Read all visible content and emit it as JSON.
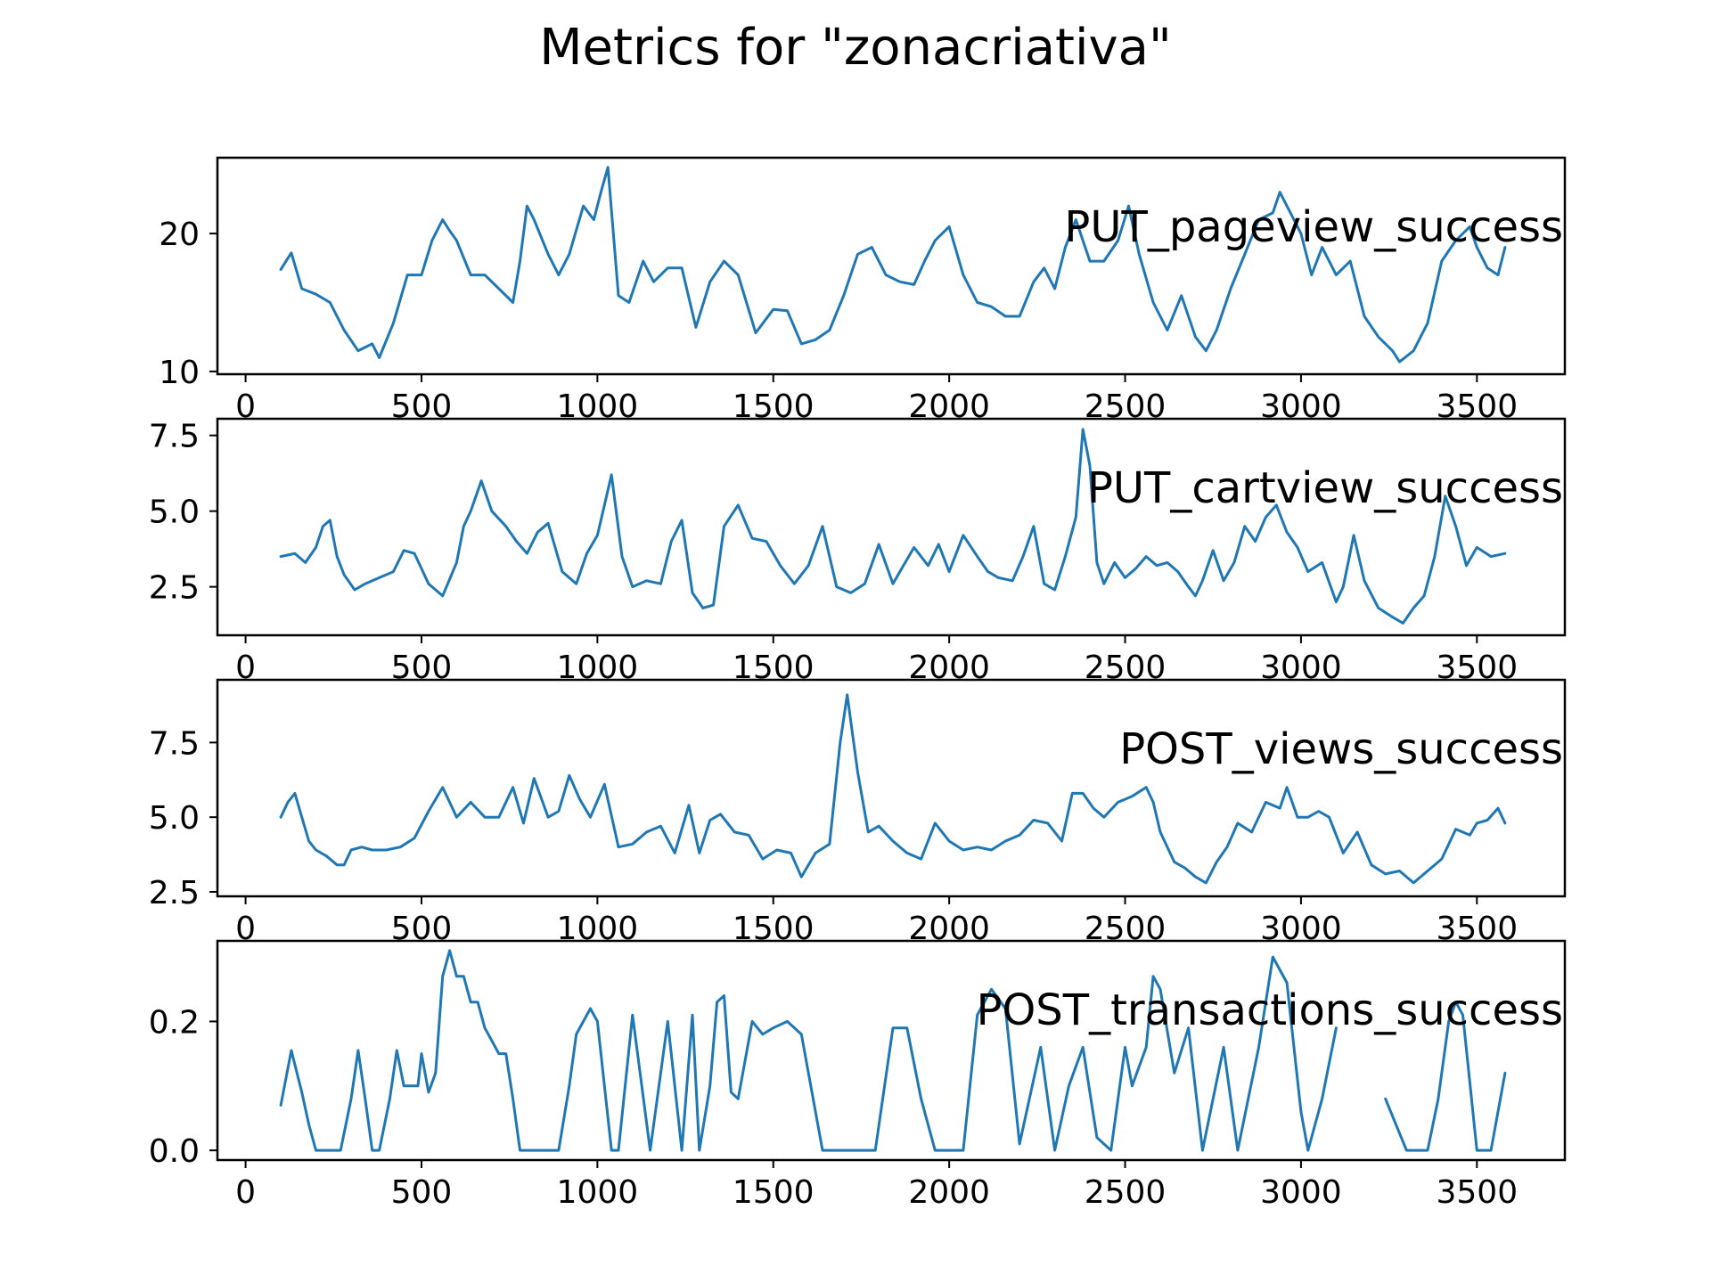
{
  "title": "Metrics for \"zonacriativa\"",
  "line_color": "#1f77b4",
  "chart_data": [
    {
      "type": "line",
      "series_label": "PUT_pageview_success",
      "xlim": [
        -80,
        3750
      ],
      "ylim": [
        9.8,
        25.5
      ],
      "xticks": [
        0,
        500,
        1000,
        1500,
        2000,
        2500,
        3000,
        3500
      ],
      "xtick_labels": [
        "0",
        "500",
        "1000",
        "1500",
        "2000",
        "2500",
        "3000",
        "3500"
      ],
      "yticks": [
        10,
        20
      ],
      "ytick_labels": [
        "10",
        "20"
      ],
      "x": [
        100,
        130,
        160,
        200,
        240,
        280,
        320,
        360,
        380,
        420,
        460,
        500,
        530,
        560,
        580,
        600,
        640,
        680,
        720,
        760,
        780,
        800,
        820,
        860,
        890,
        920,
        960,
        990,
        1010,
        1030,
        1060,
        1090,
        1130,
        1160,
        1200,
        1240,
        1280,
        1320,
        1360,
        1400,
        1450,
        1500,
        1540,
        1580,
        1620,
        1660,
        1700,
        1740,
        1780,
        1820,
        1860,
        1900,
        1930,
        1960,
        2000,
        2040,
        2080,
        2120,
        2160,
        2200,
        2240,
        2270,
        2300,
        2330,
        2360,
        2400,
        2440,
        2480,
        2510,
        2540,
        2580,
        2620,
        2660,
        2700,
        2730,
        2760,
        2800,
        2840,
        2880,
        2920,
        2940,
        2970,
        3000,
        3030,
        3060,
        3100,
        3140,
        3180,
        3220,
        3260,
        3280,
        3320,
        3360,
        3400,
        3440,
        3480,
        3500,
        3530,
        3560,
        3580
      ],
      "y": [
        17.4,
        18.6,
        16.0,
        15.6,
        15.0,
        13.0,
        11.5,
        12.0,
        11.0,
        13.5,
        17.0,
        17.0,
        19.5,
        21.0,
        20.2,
        19.5,
        17.0,
        17.0,
        16.0,
        15.0,
        18.0,
        22.0,
        21.0,
        18.5,
        17.0,
        18.5,
        22.0,
        21.0,
        23.0,
        24.8,
        15.5,
        15.0,
        18.0,
        16.5,
        17.5,
        17.5,
        13.2,
        16.5,
        18.0,
        17.0,
        12.8,
        14.5,
        14.4,
        12.0,
        12.3,
        13.0,
        15.5,
        18.5,
        19.0,
        17.0,
        16.5,
        16.3,
        18.0,
        19.5,
        20.5,
        17.0,
        15.0,
        14.7,
        14.0,
        14.0,
        16.5,
        17.5,
        16.0,
        19.0,
        21.0,
        18.0,
        18.0,
        19.5,
        22.0,
        18.5,
        15.0,
        13.0,
        15.5,
        12.5,
        11.5,
        13.0,
        16.0,
        18.5,
        21.0,
        21.5,
        23.0,
        21.5,
        20.0,
        17.0,
        19.0,
        17.0,
        18.0,
        14.0,
        12.5,
        11.5,
        10.7,
        11.5,
        13.5,
        18.0,
        19.5,
        20.5,
        19.0,
        17.5,
        17.0,
        19.0
      ]
    },
    {
      "type": "line",
      "series_label": "PUT_cartview_success",
      "xlim": [
        -80,
        3750
      ],
      "ylim": [
        0.9,
        8.05
      ],
      "xticks": [
        0,
        500,
        1000,
        1500,
        2000,
        2500,
        3000,
        3500
      ],
      "xtick_labels": [
        "0",
        "500",
        "1000",
        "1500",
        "2000",
        "2500",
        "3000",
        "3500"
      ],
      "yticks": [
        2.5,
        5.0,
        7.5
      ],
      "ytick_labels": [
        "2.5",
        "5.0",
        "7.5"
      ],
      "x": [
        100,
        140,
        170,
        200,
        220,
        240,
        260,
        280,
        310,
        340,
        380,
        420,
        450,
        480,
        520,
        560,
        600,
        620,
        640,
        670,
        700,
        740,
        770,
        800,
        830,
        860,
        900,
        940,
        970,
        1000,
        1020,
        1040,
        1070,
        1100,
        1140,
        1180,
        1210,
        1240,
        1270,
        1300,
        1330,
        1360,
        1400,
        1440,
        1480,
        1520,
        1560,
        1600,
        1640,
        1680,
        1720,
        1760,
        1800,
        1840,
        1870,
        1900,
        1940,
        1970,
        2000,
        2040,
        2080,
        2110,
        2140,
        2180,
        2210,
        2240,
        2270,
        2300,
        2330,
        2360,
        2380,
        2400,
        2420,
        2440,
        2470,
        2500,
        2530,
        2560,
        2590,
        2620,
        2650,
        2680,
        2700,
        2720,
        2750,
        2780,
        2810,
        2840,
        2870,
        2900,
        2930,
        2960,
        2990,
        3020,
        3060,
        3100,
        3120,
        3150,
        3180,
        3220,
        3260,
        3290,
        3320,
        3350,
        3380,
        3410,
        3440,
        3470,
        3500,
        3540,
        3580
      ],
      "y": [
        3.5,
        3.6,
        3.3,
        3.8,
        4.5,
        4.7,
        3.5,
        2.9,
        2.4,
        2.6,
        2.8,
        3.0,
        3.7,
        3.6,
        2.6,
        2.2,
        3.3,
        4.5,
        5.0,
        6.0,
        5.0,
        4.5,
        4.0,
        3.6,
        4.3,
        4.6,
        3.0,
        2.6,
        3.6,
        4.2,
        5.2,
        6.2,
        3.5,
        2.5,
        2.7,
        2.6,
        4.0,
        4.7,
        2.3,
        1.8,
        1.9,
        4.5,
        5.2,
        4.1,
        4.0,
        3.2,
        2.6,
        3.2,
        4.5,
        2.5,
        2.3,
        2.6,
        3.9,
        2.6,
        3.2,
        3.8,
        3.2,
        3.9,
        3.0,
        4.2,
        3.5,
        3.0,
        2.8,
        2.7,
        3.5,
        4.5,
        2.6,
        2.4,
        3.5,
        4.8,
        7.7,
        6.5,
        3.3,
        2.6,
        3.3,
        2.8,
        3.1,
        3.5,
        3.2,
        3.3,
        3.0,
        2.5,
        2.2,
        2.7,
        3.7,
        2.7,
        3.3,
        4.5,
        4.0,
        4.8,
        5.2,
        4.3,
        3.8,
        3.0,
        3.3,
        2.0,
        2.5,
        4.2,
        2.7,
        1.8,
        1.5,
        1.3,
        1.8,
        2.2,
        3.5,
        5.5,
        4.5,
        3.2,
        3.8,
        3.5,
        3.6
      ]
    },
    {
      "type": "line",
      "series_label": "POST_views_success",
      "xlim": [
        -80,
        3750
      ],
      "ylim": [
        2.35,
        9.6
      ],
      "xticks": [
        0,
        500,
        1000,
        1500,
        2000,
        2500,
        3000,
        3500
      ],
      "xtick_labels": [
        "0",
        "500",
        "1000",
        "1500",
        "2000",
        "2500",
        "3000",
        "3500"
      ],
      "yticks": [
        2.5,
        5.0,
        7.5
      ],
      "ytick_labels": [
        "2.5",
        "5.0",
        "7.5"
      ],
      "x": [
        100,
        120,
        140,
        160,
        180,
        200,
        230,
        260,
        280,
        300,
        330,
        360,
        400,
        440,
        480,
        520,
        560,
        580,
        600,
        640,
        680,
        720,
        760,
        790,
        820,
        860,
        890,
        920,
        950,
        980,
        1020,
        1060,
        1100,
        1140,
        1180,
        1220,
        1260,
        1290,
        1320,
        1350,
        1390,
        1430,
        1470,
        1510,
        1550,
        1580,
        1620,
        1660,
        1690,
        1710,
        1740,
        1770,
        1800,
        1840,
        1880,
        1920,
        1960,
        2000,
        2040,
        2080,
        2120,
        2160,
        2200,
        2240,
        2280,
        2320,
        2350,
        2380,
        2410,
        2440,
        2480,
        2520,
        2560,
        2580,
        2600,
        2640,
        2670,
        2700,
        2730,
        2760,
        2790,
        2820,
        2860,
        2900,
        2940,
        2960,
        2990,
        3020,
        3050,
        3080,
        3120,
        3160,
        3200,
        3240,
        3280,
        3320,
        3360,
        3400,
        3440,
        3480,
        3500,
        3530,
        3560,
        3580
      ],
      "y": [
        5.0,
        5.5,
        5.8,
        5.0,
        4.2,
        3.9,
        3.7,
        3.4,
        3.4,
        3.9,
        4.0,
        3.9,
        3.9,
        4.0,
        4.3,
        5.2,
        6.0,
        5.5,
        5.0,
        5.5,
        5.0,
        5.0,
        6.0,
        4.8,
        6.3,
        5.0,
        5.2,
        6.4,
        5.6,
        5.0,
        6.1,
        4.0,
        4.1,
        4.5,
        4.7,
        3.8,
        5.4,
        3.8,
        4.9,
        5.1,
        4.5,
        4.4,
        3.6,
        3.9,
        3.8,
        3.0,
        3.8,
        4.1,
        7.5,
        9.1,
        6.5,
        4.5,
        4.7,
        4.2,
        3.8,
        3.6,
        4.8,
        4.2,
        3.9,
        4.0,
        3.9,
        4.2,
        4.4,
        4.9,
        4.8,
        4.2,
        5.8,
        5.8,
        5.3,
        5.0,
        5.5,
        5.7,
        6.0,
        5.5,
        4.5,
        3.5,
        3.3,
        3.0,
        2.8,
        3.5,
        4.0,
        4.8,
        4.5,
        5.5,
        5.3,
        6.0,
        5.0,
        5.0,
        5.2,
        5.0,
        3.8,
        4.5,
        3.4,
        3.1,
        3.2,
        2.8,
        3.2,
        3.6,
        4.6,
        4.4,
        4.8,
        4.9,
        5.3,
        4.8
      ]
    },
    {
      "type": "line",
      "series_label": "POST_transactions_success",
      "xlim": [
        -80,
        3750
      ],
      "ylim": [
        -0.015,
        0.325
      ],
      "xticks": [
        0,
        500,
        1000,
        1500,
        2000,
        2500,
        3000,
        3500
      ],
      "xtick_labels": [
        "0",
        "500",
        "1000",
        "1500",
        "2000",
        "2500",
        "3000",
        "3500"
      ],
      "yticks": [
        0.0,
        0.2
      ],
      "ytick_labels": [
        "0.0",
        "0.2"
      ],
      "x": [
        100,
        130,
        160,
        180,
        200,
        240,
        270,
        300,
        320,
        340,
        360,
        380,
        410,
        430,
        450,
        460,
        470,
        490,
        500,
        520,
        540,
        560,
        580,
        600,
        620,
        640,
        660,
        680,
        700,
        720,
        740,
        760,
        780,
        800,
        840,
        890,
        920,
        940,
        960,
        980,
        1000,
        1040,
        1060,
        1100,
        1150,
        1200,
        1240,
        1270,
        1290,
        1320,
        1340,
        1360,
        1380,
        1400,
        1440,
        1470,
        1500,
        1540,
        1580,
        1640,
        1680,
        1720,
        1790,
        1840,
        1880,
        1920,
        1960,
        2000,
        2040,
        2080,
        2120,
        2160,
        2200,
        2220,
        2260,
        2300,
        2340,
        2380,
        2400,
        2420,
        2460,
        2500,
        2520,
        2560,
        2580,
        2600,
        2640,
        2680,
        2720,
        2780,
        2820,
        2880,
        2920,
        2960,
        3000,
        3020,
        3060,
        3100,
        3200,
        3240,
        3300,
        3360,
        3390,
        3420,
        3440,
        3460,
        3500,
        3540,
        3580
      ],
      "y": [
        0.07,
        0.155,
        0.09,
        0.04,
        0.0,
        0.0,
        0.0,
        0.08,
        0.155,
        0.08,
        0.0,
        0.0,
        0.08,
        0.155,
        0.1,
        0.1,
        0.1,
        0.1,
        0.15,
        0.09,
        0.12,
        0.27,
        0.31,
        0.27,
        0.27,
        0.23,
        0.23,
        0.19,
        0.17,
        0.15,
        0.15,
        0.08,
        0.0,
        0.0,
        0.0,
        0.0,
        0.1,
        0.18,
        0.2,
        0.22,
        0.2,
        0.0,
        0.0,
        0.21,
        0.0,
        0.2,
        0.0,
        0.21,
        0.0,
        0.1,
        0.23,
        0.24,
        0.09,
        0.08,
        0.2,
        0.18,
        0.19,
        0.2,
        0.18,
        0.0,
        0.0,
        0.0,
        0.0,
        0.19,
        0.19,
        0.08,
        0.0,
        0.0,
        0.0,
        0.21,
        0.25,
        0.22,
        0.01,
        0.06,
        0.16,
        0.0,
        0.1,
        0.16,
        0.09,
        0.02,
        0.0,
        0.16,
        0.1,
        0.16,
        0.27,
        0.25,
        0.12,
        0.19,
        0.0,
        0.16,
        0.0,
        0.16,
        0.3,
        0.26,
        0.06,
        0.0,
        0.08,
        0.19,
        null,
        0.08,
        0.0,
        0.0,
        0.08,
        0.2,
        0.23,
        0.21,
        0.0,
        0.0,
        0.12
      ]
    }
  ]
}
